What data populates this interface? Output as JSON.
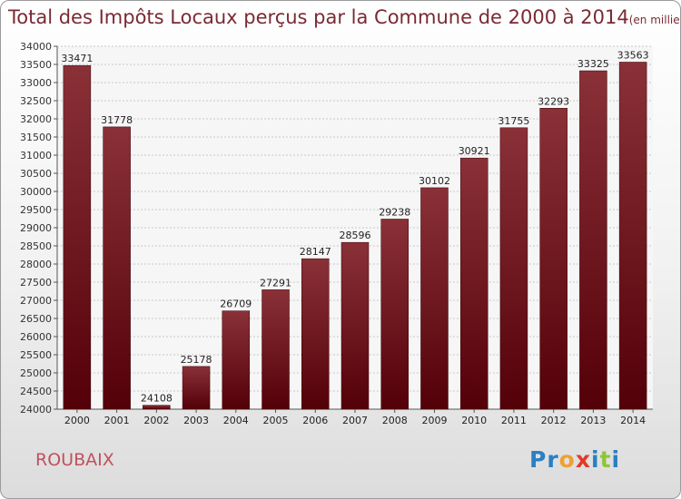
{
  "header": {
    "title": "Total des Impôts Locaux perçus par la Commune de 2000 à 2014",
    "unit": "(en milliers d'€)"
  },
  "footer": {
    "city": "ROUBAIX",
    "logo": "Proxiti"
  },
  "colors": {
    "bar_light": "#8a3138",
    "bar_dark": "#540008",
    "title": "#7a2a33",
    "city": "#c2505f",
    "logo_letters": [
      "#2b7fc4",
      "#2b7fc4",
      "#f0a030",
      "#e03a2a",
      "#2b7fc4",
      "#8fc43a",
      "#2b7fc4"
    ]
  },
  "chart_data": {
    "type": "bar",
    "title": "Total des Impôts Locaux perçus par la Commune de 2000 à 2014",
    "xlabel": "",
    "ylabel": "",
    "ylim": [
      24000,
      34000
    ],
    "ytick_step": 500,
    "grid": true,
    "categories": [
      "2000",
      "2001",
      "2002",
      "2003",
      "2004",
      "2005",
      "2006",
      "2007",
      "2008",
      "2009",
      "2010",
      "2011",
      "2012",
      "2013",
      "2014"
    ],
    "values": [
      33471,
      31778,
      24108,
      25178,
      26709,
      27291,
      28147,
      28596,
      29238,
      30102,
      30921,
      31755,
      32293,
      33325,
      33563
    ]
  }
}
